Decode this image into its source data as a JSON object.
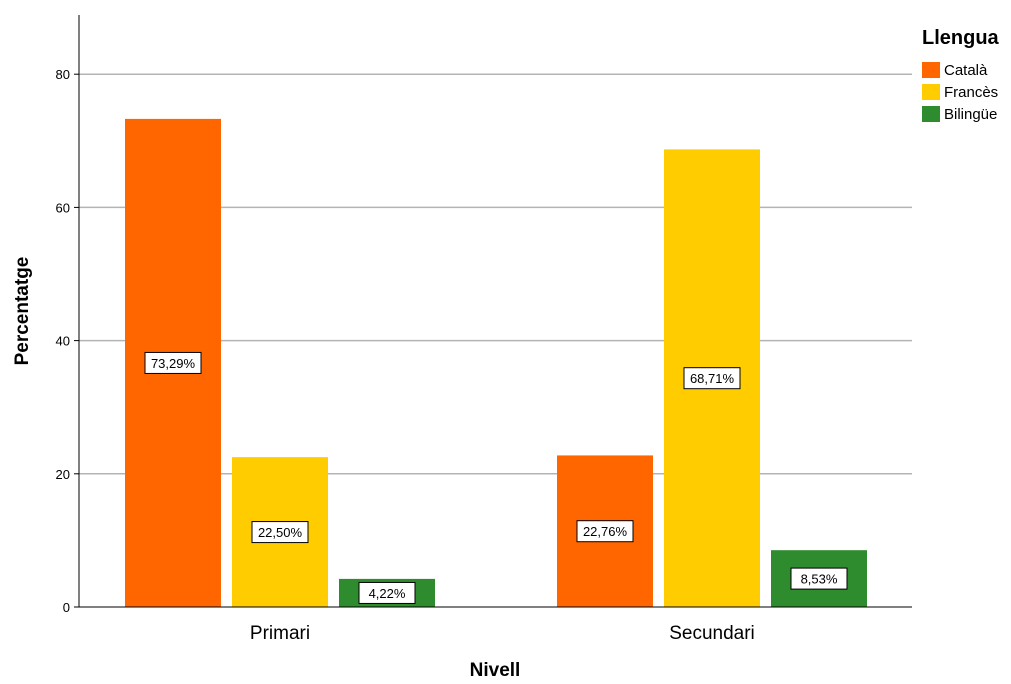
{
  "chart_data": {
    "type": "bar",
    "categories": [
      "Primari",
      "Secundari"
    ],
    "series": [
      {
        "name": "Català",
        "values": [
          73.29,
          22.76
        ],
        "labels": [
          "73,29%",
          "22,76%"
        ],
        "color": "#ff6600"
      },
      {
        "name": "Francès",
        "values": [
          22.5,
          68.71
        ],
        "labels": [
          "22,50%",
          "68,71%"
        ],
        "color": "#ffcc00"
      },
      {
        "name": "Bilingüe",
        "values": [
          4.22,
          8.53
        ],
        "labels": [
          "4,22%",
          "8,53%"
        ],
        "color": "#2e8b2e"
      }
    ],
    "xlabel": "Nivell",
    "ylabel": "Percentatge",
    "ylim": [
      0,
      88
    ],
    "yticks": [
      0,
      20,
      40,
      60,
      80
    ],
    "grid": true,
    "legend": {
      "title": "Llengua",
      "position": "top-right"
    }
  }
}
